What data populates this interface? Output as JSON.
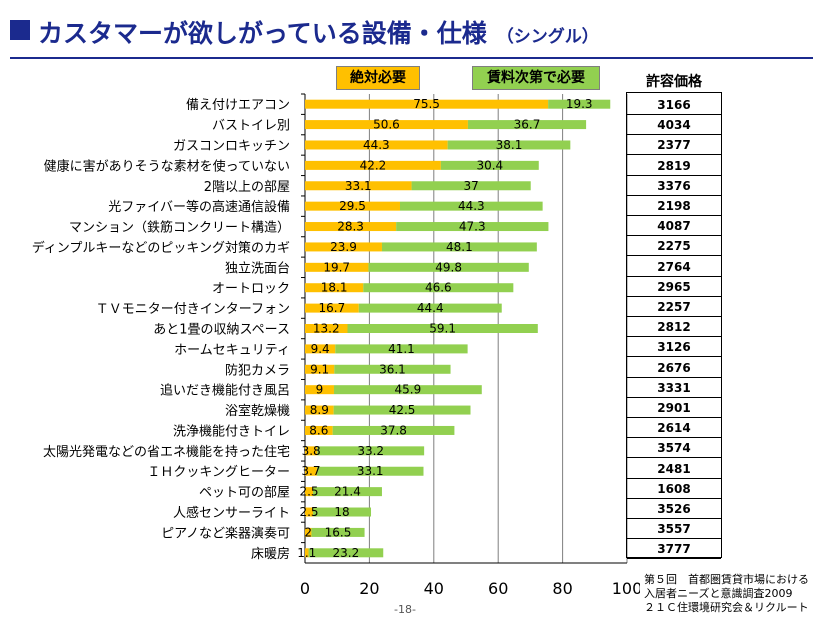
{
  "title": {
    "main": "カスタマーが欲しがっている設備・仕様",
    "sub": "（シングル）"
  },
  "legend": {
    "must": "絶対必要",
    "conditional": "賃料次第で必要"
  },
  "price_header": "許容価格",
  "colors": {
    "must": "#ffc000",
    "conditional": "#92d050",
    "title": "#1b2a8e"
  },
  "source": [
    "第５回　首都圏賃貸市場における",
    "入居者ニーズと意識調査2009",
    "２１Ｃ住環境研究会＆リクルート"
  ],
  "page_number": "-18-",
  "chart_data": {
    "type": "bar",
    "orientation": "horizontal",
    "stacked": true,
    "xlim": [
      0,
      100
    ],
    "xticks": [
      "0",
      "20",
      "40",
      "60",
      "80",
      "100"
    ],
    "grid": true,
    "categories": [
      "備え付けエアコン",
      "バストイレ別",
      "ガスコンロキッチン",
      "健康に害がありそうな素材を使っていない",
      "2階以上の部屋",
      "光ファイバー等の高速通信設備",
      "マンション（鉄筋コンクリート構造）",
      "ディンプルキーなどのピッキング対策のカギ",
      "独立洗面台",
      "オートロック",
      "ＴＶモニター付きインターフォン",
      "あと1畳の収納スペース",
      "ホームセキュリティ",
      "防犯カメラ",
      "追いだき機能付き風呂",
      "浴室乾燥機",
      "洗浄機能付きトイレ",
      "太陽光発電などの省エネ機能を持った住宅",
      "ＩＨクッキングヒーター",
      "ペット可の部屋",
      "人感センサーライト",
      "ピアノなど楽器演奏可",
      "床暖房"
    ],
    "series": [
      {
        "name": "絶対必要",
        "values": [
          75.5,
          50.6,
          44.3,
          42.2,
          33.1,
          29.5,
          28.3,
          23.9,
          19.7,
          18.1,
          16.7,
          13.2,
          9.4,
          9.1,
          9,
          8.9,
          8.6,
          3.8,
          3.7,
          2.5,
          2.5,
          2,
          1.1
        ]
      },
      {
        "name": "賃料次第で必要",
        "values": [
          19.3,
          36.7,
          38.1,
          30.4,
          37,
          44.3,
          47.3,
          48.1,
          49.8,
          46.6,
          44.4,
          59.1,
          41.1,
          36.1,
          45.9,
          42.5,
          37.8,
          33.2,
          33.1,
          21.4,
          18,
          16.5,
          23.2
        ]
      }
    ],
    "prices": [
      "3166",
      "4034",
      "2377",
      "2819",
      "3376",
      "2198",
      "4087",
      "2275",
      "2764",
      "2965",
      "2257",
      "2812",
      "3126",
      "2676",
      "3331",
      "2901",
      "2614",
      "3574",
      "2481",
      "1608",
      "3526",
      "3557",
      "3777"
    ]
  }
}
